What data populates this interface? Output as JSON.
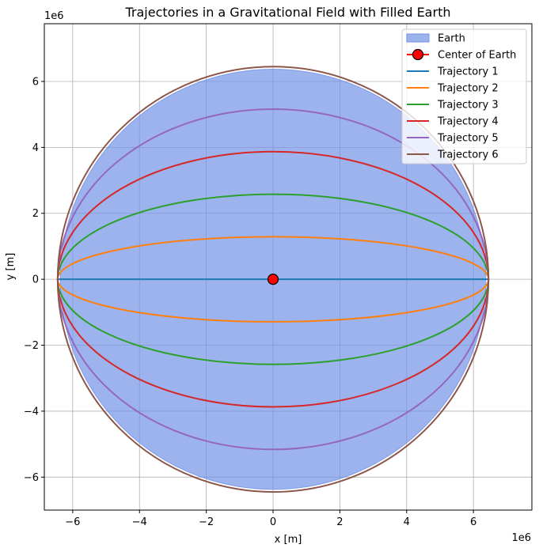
{
  "chart_data": {
    "type": "line",
    "title": "Trajectories in a Gravitational Field with Filled Earth",
    "xlabel": "x [m]",
    "ylabel": "y [m]",
    "x_offset_label": "1e6",
    "y_offset_label": "1e6",
    "xlim": [
      -6850000.0,
      7750000.0
    ],
    "ylim": [
      -7000000.0,
      7750000.0
    ],
    "xticks": [
      -6000000.0,
      -4000000.0,
      -2000000.0,
      0,
      2000000.0,
      4000000.0,
      6000000.0
    ],
    "yticks": [
      -6000000.0,
      -4000000.0,
      -2000000.0,
      0,
      2000000.0,
      4000000.0,
      6000000.0
    ],
    "xtick_labels": [
      "−6",
      "−4",
      "−2",
      "0",
      "2",
      "4",
      "6"
    ],
    "ytick_labels": [
      "−6",
      "−4",
      "−2",
      "0",
      "2",
      "4",
      "6"
    ],
    "grid": true,
    "legend_position": "top-right",
    "earth": {
      "name": "Earth",
      "radius": 6371000.0,
      "color": "#6f8fe6"
    },
    "center": {
      "name": "Center of Earth",
      "x": 0,
      "y": 0,
      "color": "#ff0000"
    },
    "series": [
      {
        "name": "Trajectory 1",
        "a": 6450000.0,
        "b": 0,
        "color": "#1f77b4"
      },
      {
        "name": "Trajectory 2",
        "a": 6450000.0,
        "b": 1290000.0,
        "color": "#ff7f0e"
      },
      {
        "name": "Trajectory 3",
        "a": 6450000.0,
        "b": 2580000.0,
        "color": "#2ca02c"
      },
      {
        "name": "Trajectory 4",
        "a": 6450000.0,
        "b": 3870000.0,
        "color": "#d62728"
      },
      {
        "name": "Trajectory 5",
        "a": 6450000.0,
        "b": 5160000.0,
        "color": "#9467bd"
      },
      {
        "name": "Trajectory 6",
        "a": 6450000.0,
        "b": 6450000.0,
        "color": "#8c564b"
      }
    ]
  }
}
